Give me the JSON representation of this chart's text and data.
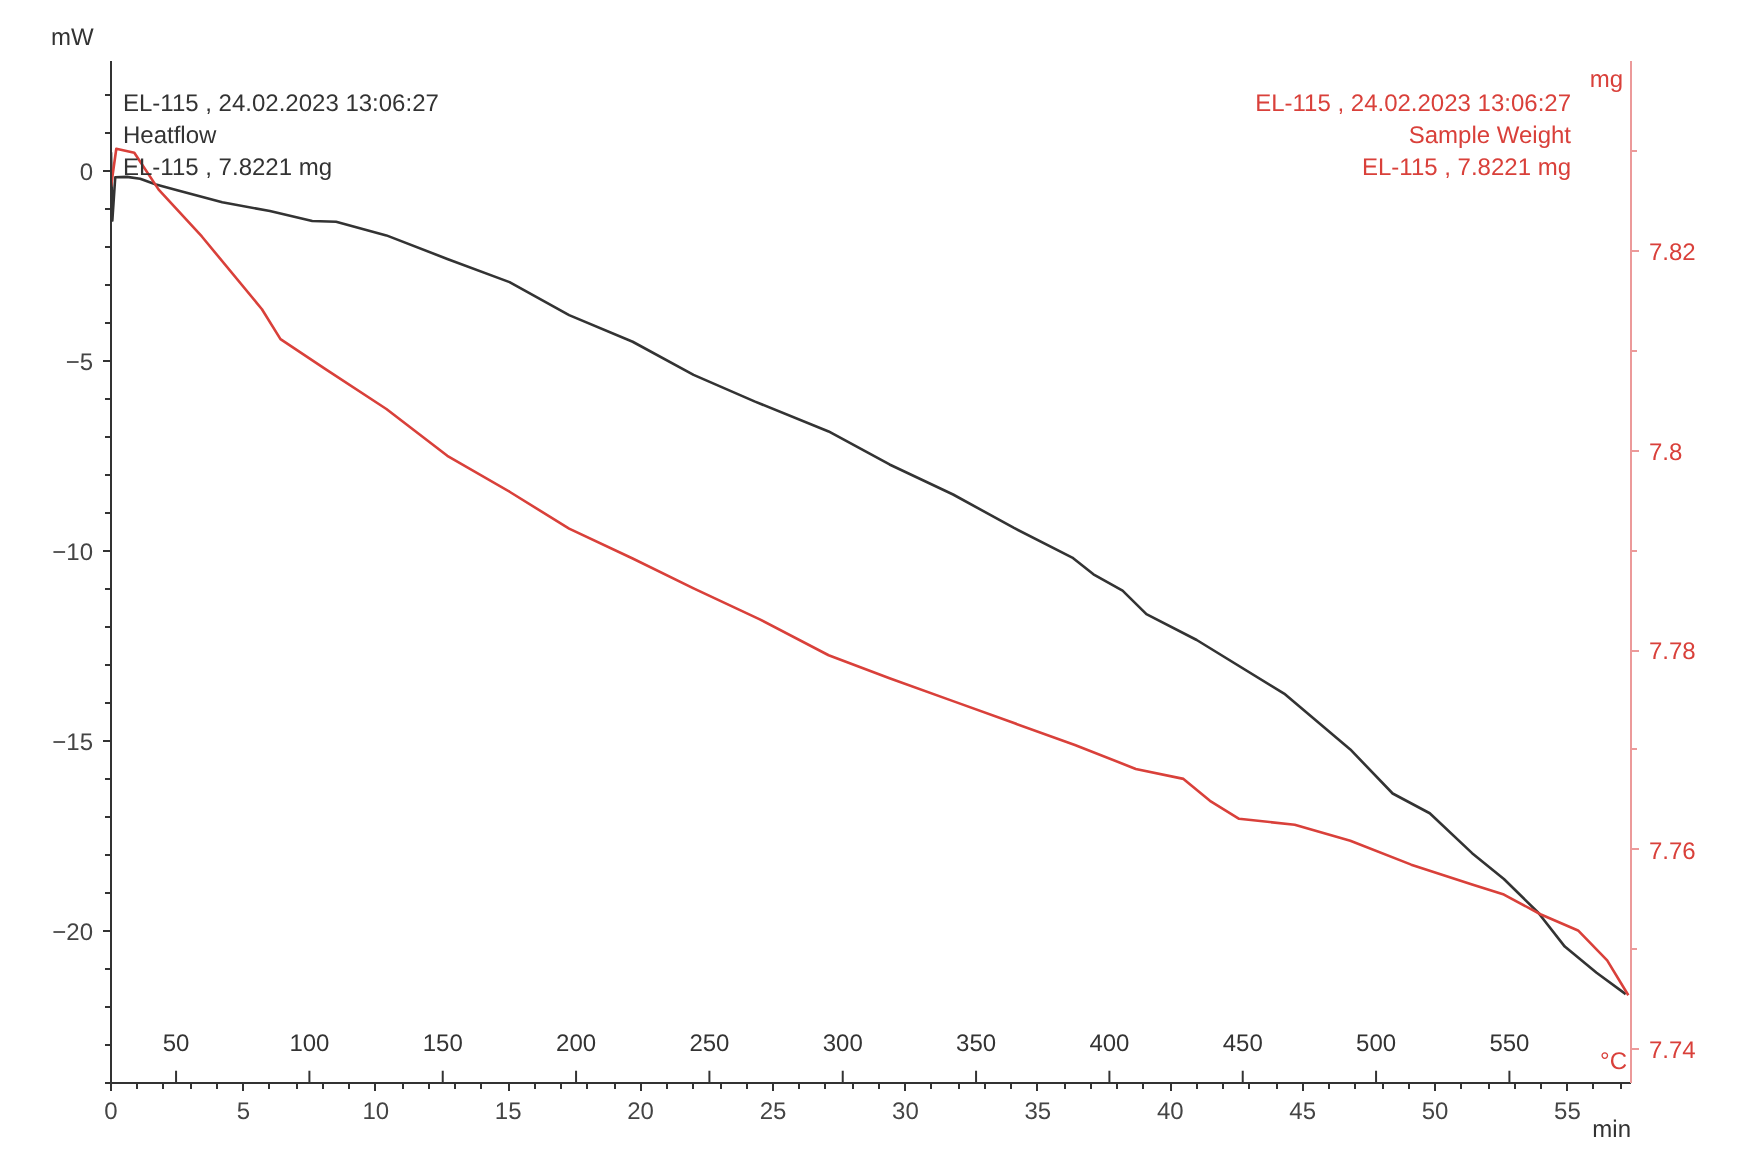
{
  "chart_data": {
    "type": "line",
    "xlabel": "min",
    "ylabel": "mW",
    "y2label": "mg",
    "x2label": "°C",
    "xlim": [
      0,
      57.4
    ],
    "xticks": [
      0,
      5,
      10,
      15,
      20,
      25,
      30,
      35,
      40,
      45,
      50,
      55
    ],
    "x2lim": [
      25.6,
      595.6
    ],
    "x2ticks": [
      50,
      100,
      150,
      200,
      250,
      300,
      350,
      400,
      450,
      500,
      550
    ],
    "ylim": [
      -24,
      2.9
    ],
    "yticks": [
      -20,
      -15,
      -10,
      -5,
      0
    ],
    "y2lim": [
      7.7366,
      7.8391
    ],
    "y2ticks": [
      7.74,
      7.76,
      7.78,
      7.8,
      7.82
    ],
    "grid": false,
    "marker": "none",
    "line_style": "solid",
    "annotations": [
      "EL-115 , 24.02.2023 13:06:27",
      "EL-115 , 7.8221 mg",
      "EL-115 , 24.02.2023 13:06:27",
      "EL-115 , 7.8221 mg"
    ],
    "series": [
      {
        "name": "Heatflow",
        "color": "#333333",
        "x": [
          0,
          0.05,
          0.16,
          0.6,
          1.1,
          1.7,
          2.5,
          4.2,
          6.0,
          7.6,
          8.5,
          10.4,
          12.7,
          15.05,
          17.3,
          19.7,
          22.0,
          24.3,
          27.1,
          29.4,
          31.8,
          34.1,
          36.3,
          37.1,
          38.2,
          39.1,
          41.0,
          44.3,
          46.8,
          48.4,
          49.8,
          51.4,
          52.6,
          53.9,
          54.9,
          56.1,
          57.2
        ],
        "values": [
          0.5,
          -1.3,
          -0.16,
          -0.15,
          -0.2,
          -0.35,
          -0.5,
          -0.82,
          -1.05,
          -1.31,
          -1.33,
          -1.69,
          -2.31,
          -2.92,
          -3.79,
          -4.49,
          -5.36,
          -6.06,
          -6.85,
          -7.72,
          -8.51,
          -9.39,
          -10.17,
          -10.61,
          -11.04,
          -11.66,
          -12.34,
          -13.75,
          -15.22,
          -16.38,
          -16.9,
          -17.95,
          -18.63,
          -19.52,
          -20.41,
          -21.1,
          -21.66
        ]
      },
      {
        "name": "Sample Weight",
        "color": "#d9403a",
        "axis": "y2",
        "x": [
          0,
          0.2,
          0.88,
          1.8,
          3.43,
          5.7,
          6.4,
          8.1,
          10.4,
          12.7,
          15.05,
          17.3,
          19.7,
          22.0,
          24.5,
          27.1,
          29.4,
          31.8,
          34.1,
          36.4,
          38.7,
          40.5,
          41.5,
          42.6,
          44.7,
          46.8,
          49.1,
          51.4,
          52.6,
          54.0,
          55.4,
          56.5,
          57.3
        ],
        "values": [
          7.8265,
          7.8303,
          7.8299,
          7.8262,
          7.8215,
          7.8142,
          7.8112,
          7.8082,
          7.8042,
          7.7995,
          7.7959,
          7.7922,
          7.7892,
          7.7862,
          7.7831,
          7.7795,
          7.7772,
          7.7749,
          7.7727,
          7.7705,
          7.7681,
          7.7671,
          7.7649,
          7.7631,
          7.7625,
          7.7609,
          7.7585,
          7.7565,
          7.7555,
          7.7535,
          7.7519,
          7.7489,
          7.7454
        ]
      }
    ]
  }
}
